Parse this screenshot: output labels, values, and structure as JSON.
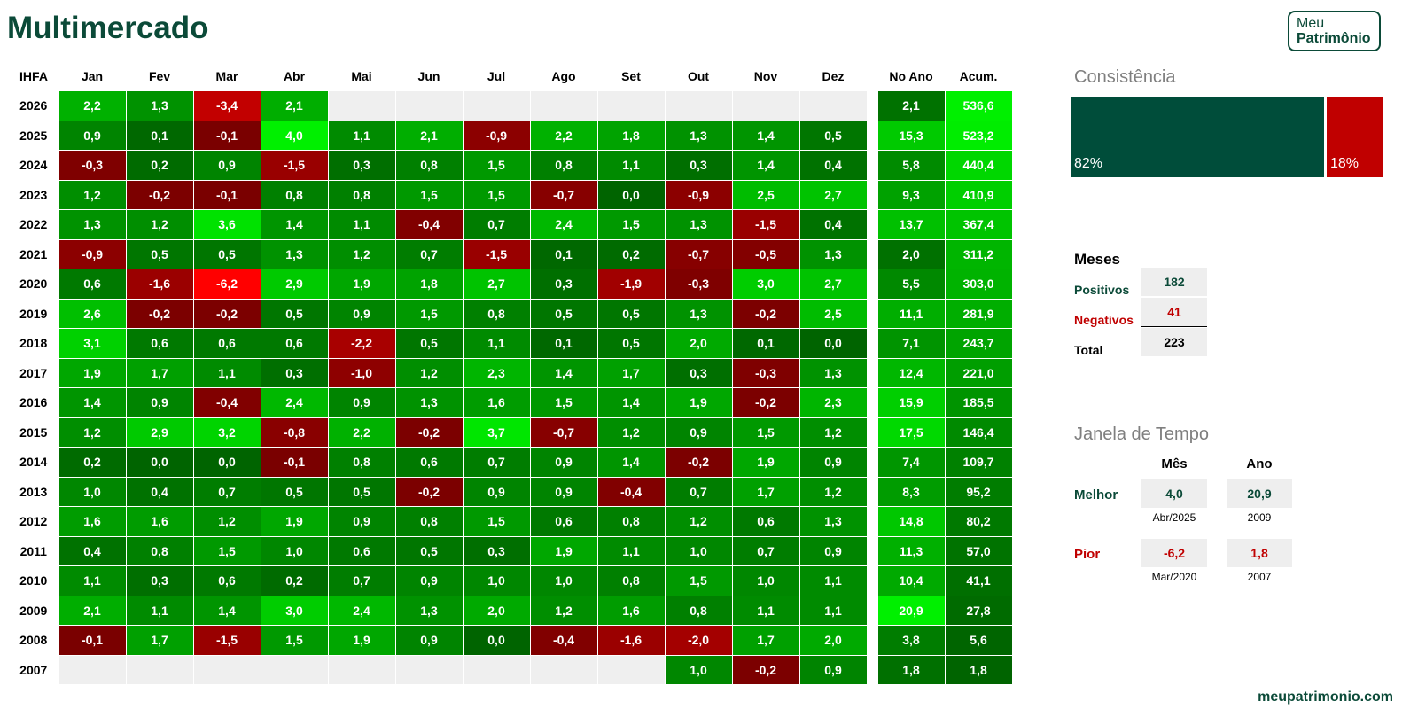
{
  "title": "Multimercado",
  "logo": {
    "line1": "Meu",
    "line2": "Patrimônio"
  },
  "chart_data": {
    "type": "table",
    "corner_label": "IHFA",
    "months": [
      "Jan",
      "Fev",
      "Mar",
      "Abr",
      "Mai",
      "Jun",
      "Jul",
      "Ago",
      "Set",
      "Out",
      "Nov",
      "Dez"
    ],
    "col_no_ano": "No Ano",
    "col_acum": "Acum.",
    "rows": [
      {
        "year": "2026",
        "values": [
          "2,2",
          "1,3",
          "-3,4",
          "2,1",
          null,
          null,
          null,
          null,
          null,
          null,
          null,
          null
        ],
        "no_ano": "2,1",
        "acum": "536,6"
      },
      {
        "year": "2025",
        "values": [
          "0,9",
          "0,1",
          "-0,1",
          "4,0",
          "1,1",
          "2,1",
          "-0,9",
          "2,2",
          "1,8",
          "1,3",
          "1,4",
          "0,5"
        ],
        "no_ano": "15,3",
        "acum": "523,2"
      },
      {
        "year": "2024",
        "values": [
          "-0,3",
          "0,2",
          "0,9",
          "-1,5",
          "0,3",
          "0,8",
          "1,5",
          "0,8",
          "1,1",
          "0,3",
          "1,4",
          "0,4"
        ],
        "no_ano": "5,8",
        "acum": "440,4"
      },
      {
        "year": "2023",
        "values": [
          "1,2",
          "-0,2",
          "-0,1",
          "0,8",
          "0,8",
          "1,5",
          "1,5",
          "-0,7",
          "0,0",
          "-0,9",
          "2,5",
          "2,7"
        ],
        "no_ano": "9,3",
        "acum": "410,9"
      },
      {
        "year": "2022",
        "values": [
          "1,3",
          "1,2",
          "3,6",
          "1,4",
          "1,1",
          "-0,4",
          "0,7",
          "2,4",
          "1,5",
          "1,3",
          "-1,5",
          "0,4"
        ],
        "no_ano": "13,7",
        "acum": "367,4"
      },
      {
        "year": "2021",
        "values": [
          "-0,9",
          "0,5",
          "0,5",
          "1,3",
          "1,2",
          "0,7",
          "-1,5",
          "0,1",
          "0,2",
          "-0,7",
          "-0,5",
          "1,3"
        ],
        "no_ano": "2,0",
        "acum": "311,2"
      },
      {
        "year": "2020",
        "values": [
          "0,6",
          "-1,6",
          "-6,2",
          "2,9",
          "1,9",
          "1,8",
          "2,7",
          "0,3",
          "-1,9",
          "-0,3",
          "3,0",
          "2,7"
        ],
        "no_ano": "5,5",
        "acum": "303,0"
      },
      {
        "year": "2019",
        "values": [
          "2,6",
          "-0,2",
          "-0,2",
          "0,5",
          "0,9",
          "1,5",
          "0,8",
          "0,5",
          "0,5",
          "1,3",
          "-0,2",
          "2,5"
        ],
        "no_ano": "11,1",
        "acum": "281,9"
      },
      {
        "year": "2018",
        "values": [
          "3,1",
          "0,6",
          "0,6",
          "0,6",
          "-2,2",
          "0,5",
          "1,1",
          "0,1",
          "0,5",
          "2,0",
          "0,1",
          "0,0"
        ],
        "no_ano": "7,1",
        "acum": "243,7"
      },
      {
        "year": "2017",
        "values": [
          "1,9",
          "1,7",
          "1,1",
          "0,3",
          "-1,0",
          "1,2",
          "2,3",
          "1,4",
          "1,7",
          "0,3",
          "-0,3",
          "1,3"
        ],
        "no_ano": "12,4",
        "acum": "221,0"
      },
      {
        "year": "2016",
        "values": [
          "1,4",
          "0,9",
          "-0,4",
          "2,4",
          "0,9",
          "1,3",
          "1,6",
          "1,5",
          "1,4",
          "1,9",
          "-0,2",
          "2,3"
        ],
        "no_ano": "15,9",
        "acum": "185,5"
      },
      {
        "year": "2015",
        "values": [
          "1,2",
          "2,9",
          "3,2",
          "-0,8",
          "2,2",
          "-0,2",
          "3,7",
          "-0,7",
          "1,2",
          "0,9",
          "1,5",
          "1,2"
        ],
        "no_ano": "17,5",
        "acum": "146,4"
      },
      {
        "year": "2014",
        "values": [
          "0,2",
          "0,0",
          "0,0",
          "-0,1",
          "0,8",
          "0,6",
          "0,7",
          "0,9",
          "1,4",
          "-0,2",
          "1,9",
          "0,9"
        ],
        "no_ano": "7,4",
        "acum": "109,7"
      },
      {
        "year": "2013",
        "values": [
          "1,0",
          "0,4",
          "0,7",
          "0,5",
          "0,5",
          "-0,2",
          "0,9",
          "0,9",
          "-0,4",
          "0,7",
          "1,7",
          "1,2"
        ],
        "no_ano": "8,3",
        "acum": "95,2"
      },
      {
        "year": "2012",
        "values": [
          "1,6",
          "1,6",
          "1,2",
          "1,9",
          "0,9",
          "0,8",
          "1,5",
          "0,6",
          "0,8",
          "1,2",
          "0,6",
          "1,3"
        ],
        "no_ano": "14,8",
        "acum": "80,2"
      },
      {
        "year": "2011",
        "values": [
          "0,4",
          "0,8",
          "1,5",
          "1,0",
          "0,6",
          "0,5",
          "0,3",
          "1,9",
          "1,1",
          "1,0",
          "0,7",
          "0,9"
        ],
        "no_ano": "11,3",
        "acum": "57,0"
      },
      {
        "year": "2010",
        "values": [
          "1,1",
          "0,3",
          "0,6",
          "0,2",
          "0,7",
          "0,9",
          "1,0",
          "1,0",
          "0,8",
          "1,5",
          "1,0",
          "1,1"
        ],
        "no_ano": "10,4",
        "acum": "41,1"
      },
      {
        "year": "2009",
        "values": [
          "2,1",
          "1,1",
          "1,4",
          "3,0",
          "2,4",
          "1,3",
          "2,0",
          "1,2",
          "1,6",
          "0,8",
          "1,1",
          "1,1"
        ],
        "no_ano": "20,9",
        "acum": "27,8"
      },
      {
        "year": "2008",
        "values": [
          "-0,1",
          "1,7",
          "-1,5",
          "1,5",
          "1,9",
          "0,9",
          "0,0",
          "-0,4",
          "-1,6",
          "-2,0",
          "1,7",
          "2,0"
        ],
        "no_ano": "3,8",
        "acum": "5,6"
      },
      {
        "year": "2007",
        "values": [
          null,
          null,
          null,
          null,
          null,
          null,
          null,
          null,
          null,
          "1,0",
          "-0,2",
          "0,9"
        ],
        "no_ano": "1,8",
        "acum": "1,8"
      }
    ]
  },
  "consistencia": {
    "title": "Consistência",
    "positive_pct": 82,
    "negative_pct": 18,
    "positive_label": "82%",
    "negative_label": "18%",
    "positive_color": "#004d3a",
    "negative_color": "#c00000"
  },
  "meses": {
    "title": "Meses",
    "positivos_label": "Positivos",
    "positivos": "182",
    "negativos_label": "Negativos",
    "negativos": "41",
    "total_label": "Total",
    "total": "223"
  },
  "janela": {
    "title": "Janela de Tempo",
    "col_mes": "Mês",
    "col_ano": "Ano",
    "melhor_label": "Melhor",
    "melhor_mes": "4,0",
    "melhor_mes_ref": "Abr/2025",
    "melhor_ano": "20,9",
    "melhor_ano_ref": "2009",
    "pior_label": "Pior",
    "pior_mes": "-6,2",
    "pior_mes_ref": "Mar/2020",
    "pior_ano": "1,8",
    "pior_ano_ref": "2007"
  },
  "colors": {
    "title": "#0b4a38",
    "positive_text": "#0b4a38",
    "negative_text": "#c00000"
  },
  "footer": "meupatrimonio.com"
}
